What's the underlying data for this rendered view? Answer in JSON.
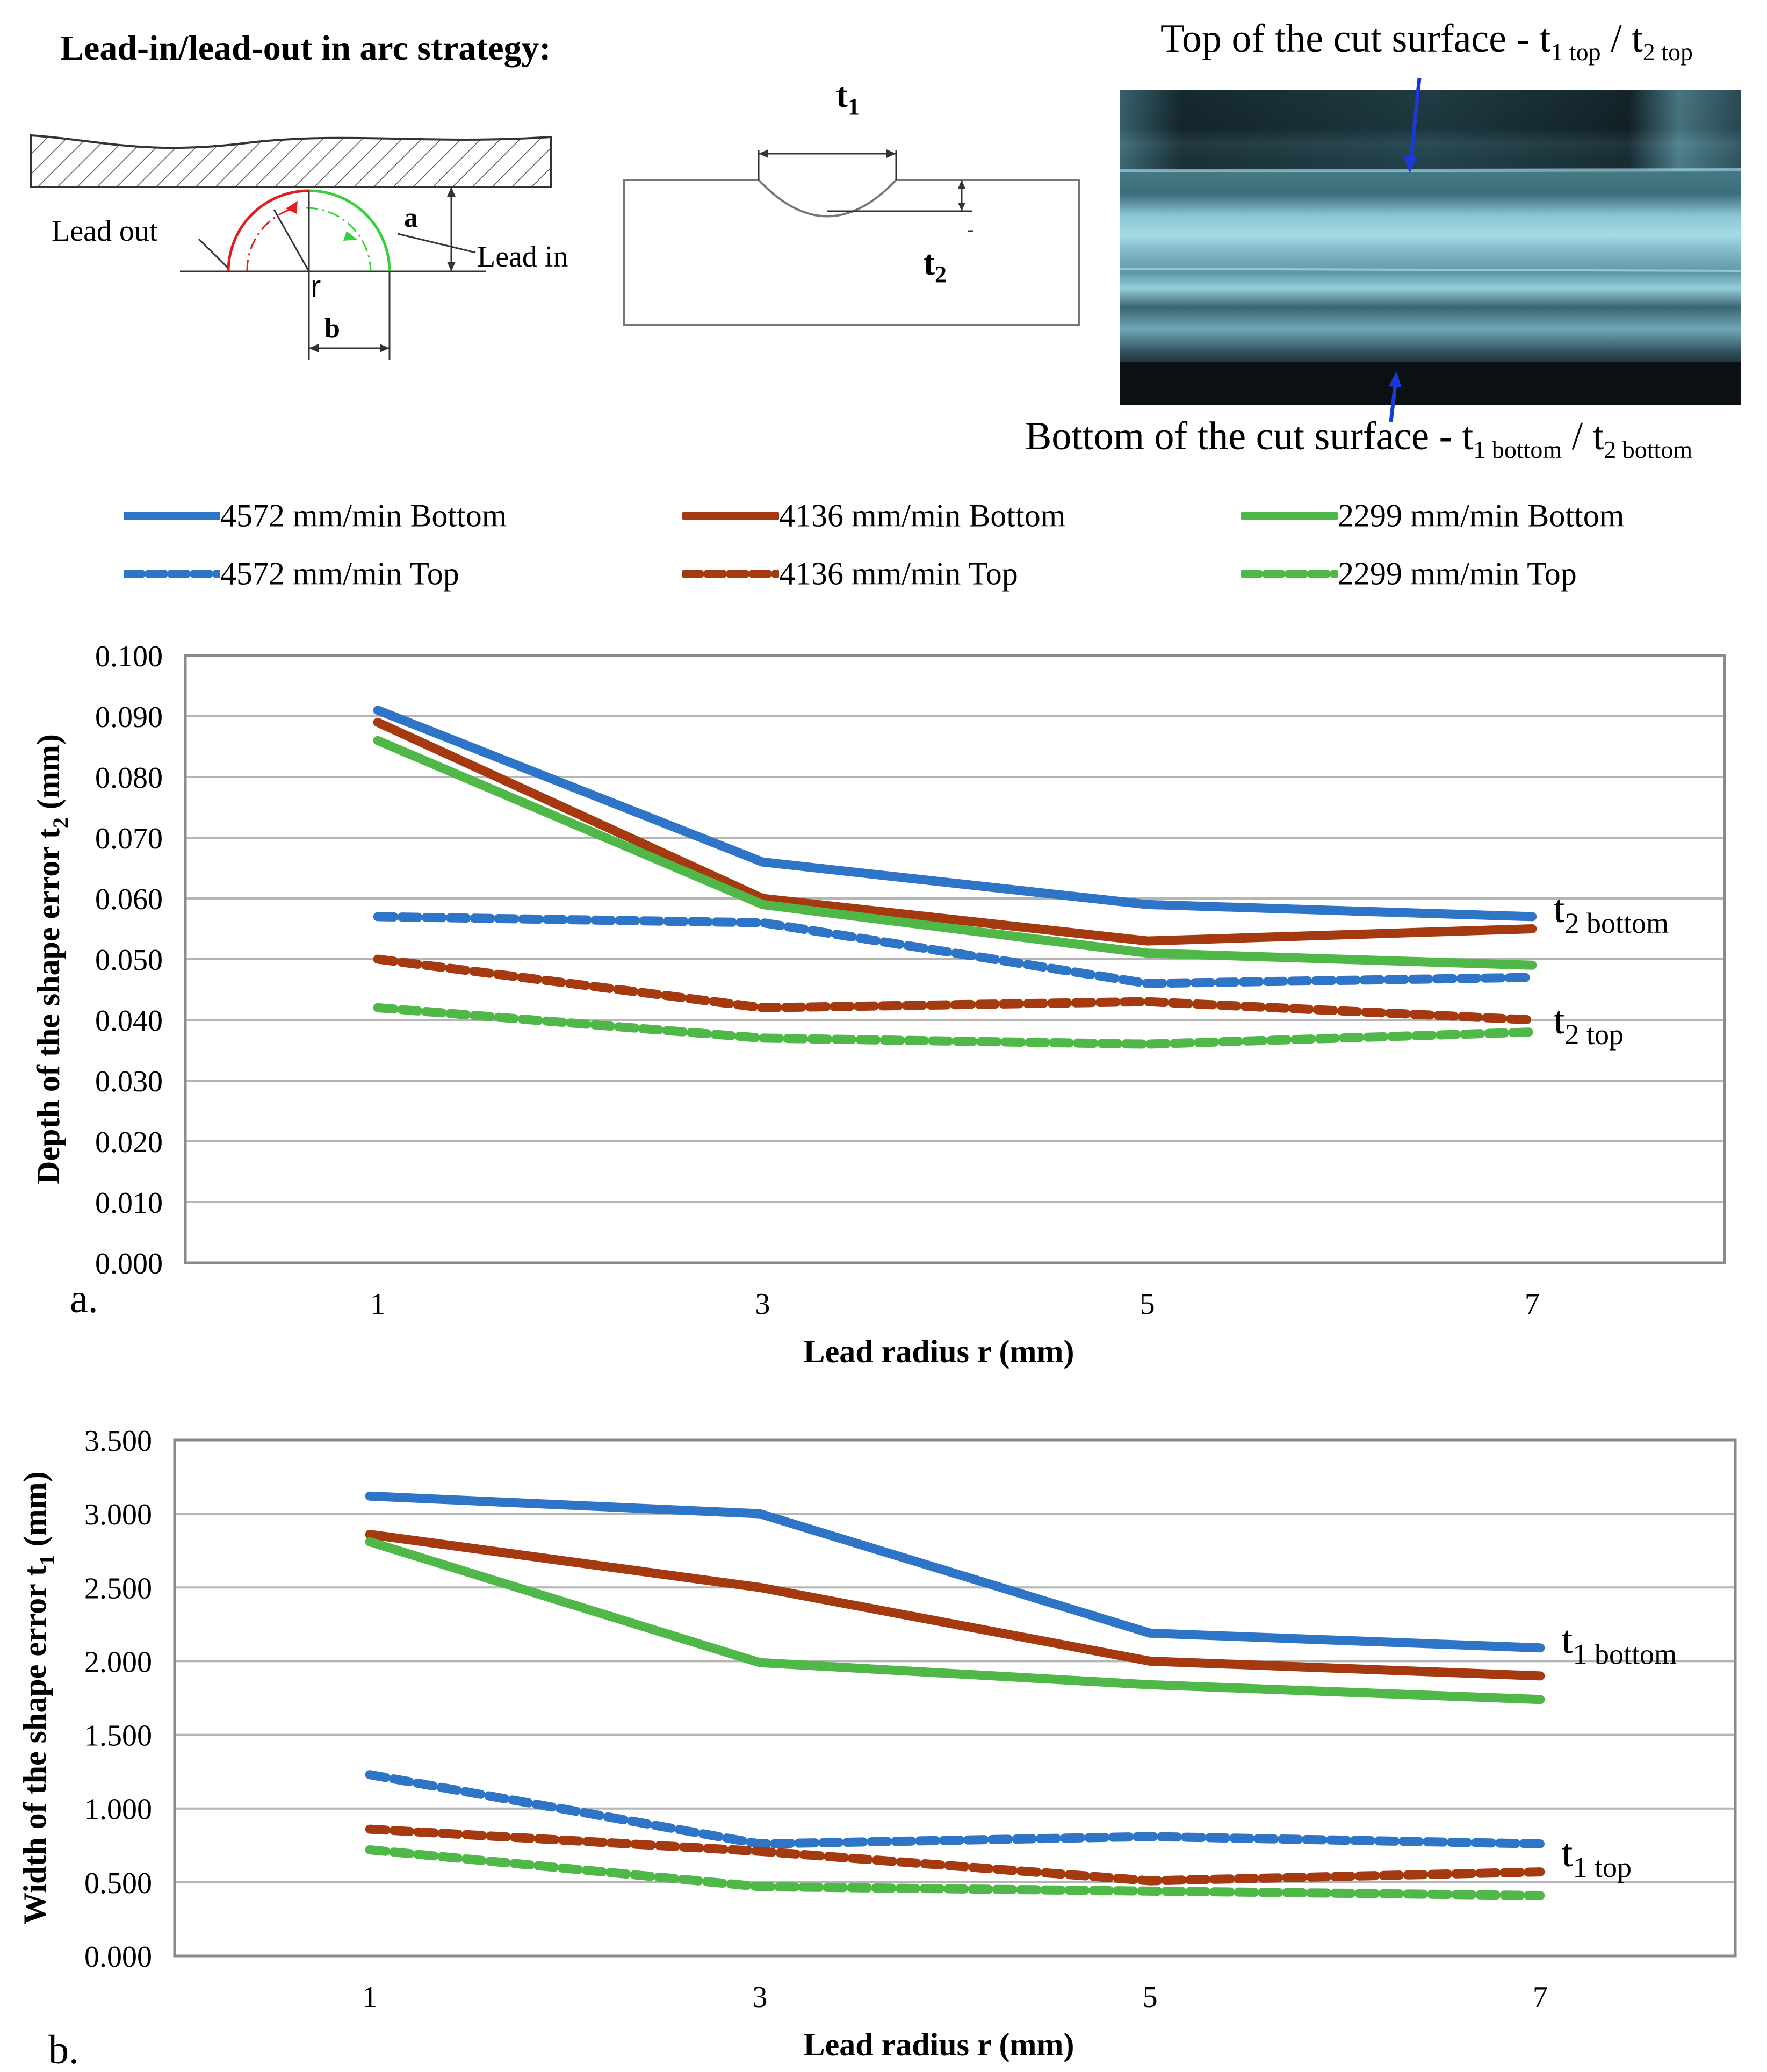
{
  "figure": {
    "strategy_title": "Lead-in/lead-out in  arc strategy:",
    "diagram1": {
      "lead_out": "Lead out",
      "lead_in": "Lead in",
      "a": "a",
      "b": "b",
      "r": "r"
    },
    "diagram2": {
      "t1": "t",
      "t1_sub": "1",
      "t2": "t",
      "t2_sub": "2"
    },
    "photo": {
      "top_text": "Top of the cut surface - t",
      "top_sub1": "1 top",
      "top_mid": " / t",
      "top_sub2": "2 top",
      "bottom_text": "Bottom of the cut surface - t",
      "bottom_sub1": "1 bottom",
      "bottom_mid": " / t",
      "bottom_sub2": "2 bottom"
    },
    "colors": {
      "blue": "#2E75C8",
      "brown": "#A5390F",
      "green": "#4FB848"
    }
  },
  "legend": [
    {
      "label": "4572 mm/min Bottom",
      "color": "#2E75C8",
      "dashed": false
    },
    {
      "label": "4136 mm/min Bottom",
      "color": "#A5390F",
      "dashed": false
    },
    {
      "label": "2299 mm/min Bottom",
      "color": "#4FB848",
      "dashed": false
    },
    {
      "label": "4572 mm/min Top",
      "color": "#2E75C8",
      "dashed": true
    },
    {
      "label": "4136 mm/min Top",
      "color": "#A5390F",
      "dashed": true
    },
    {
      "label": "2299 mm/min Top",
      "color": "#4FB848",
      "dashed": true
    }
  ],
  "chart_data": [
    {
      "type": "line",
      "panel": "a.",
      "x": [
        1,
        3,
        5,
        7
      ],
      "xlabel": "Lead radius  r (mm)",
      "ylabel": "Depth of the shape error t",
      "ylabel_sub": "2",
      "ylabel_unit": " (mm)",
      "ylim": [
        0,
        0.1
      ],
      "yticks": [
        "0.000",
        "0.010",
        "0.020",
        "0.030",
        "0.040",
        "0.050",
        "0.060",
        "0.070",
        "0.080",
        "0.090",
        "0.100"
      ],
      "grid": true,
      "annotations": [
        {
          "text": "t",
          "sub": "2 bottom",
          "x": 7,
          "y": 0.057
        },
        {
          "text": "t",
          "sub": "2 top",
          "x": 7,
          "y": 0.04
        }
      ],
      "series": [
        {
          "name": "4572 mm/min Bottom",
          "color": "#2E75C8",
          "dashed": false,
          "values": [
            0.091,
            0.066,
            0.059,
            0.057
          ]
        },
        {
          "name": "4136 mm/min Bottom",
          "color": "#A5390F",
          "dashed": false,
          "values": [
            0.089,
            0.06,
            0.053,
            0.055
          ]
        },
        {
          "name": "2299 mm/min Bottom",
          "color": "#4FB848",
          "dashed": false,
          "values": [
            0.086,
            0.059,
            0.051,
            0.049
          ]
        },
        {
          "name": "4572 mm/min Top",
          "color": "#2E75C8",
          "dashed": true,
          "values": [
            0.057,
            0.056,
            0.046,
            0.047
          ]
        },
        {
          "name": "4136 mm/min Top",
          "color": "#A5390F",
          "dashed": true,
          "values": [
            0.05,
            0.042,
            0.043,
            0.04
          ]
        },
        {
          "name": "2299 mm/min Top",
          "color": "#4FB848",
          "dashed": true,
          "values": [
            0.042,
            0.037,
            0.036,
            0.038
          ]
        }
      ]
    },
    {
      "type": "line",
      "panel": "b.",
      "x": [
        1,
        3,
        5,
        7
      ],
      "xlabel": "Lead radius r (mm)",
      "ylabel": "Width of the shape error t",
      "ylabel_sub": "1",
      "ylabel_unit": " (mm)",
      "ylim": [
        0,
        3.5
      ],
      "yticks": [
        "0.000",
        "0.500",
        "1.000",
        "1.500",
        "2.000",
        "2.500",
        "3.000",
        "3.500"
      ],
      "grid": true,
      "annotations": [
        {
          "text": "t",
          "sub": "1 bottom",
          "x": 7,
          "y": 2.09
        },
        {
          "text": "t",
          "sub": "1 top",
          "x": 7,
          "y": 0.7
        }
      ],
      "series": [
        {
          "name": "4572 mm/min Bottom",
          "color": "#2E75C8",
          "dashed": false,
          "values": [
            3.12,
            3.0,
            2.19,
            2.09
          ]
        },
        {
          "name": "4136 mm/min Bottom",
          "color": "#A5390F",
          "dashed": false,
          "values": [
            2.86,
            2.5,
            2.0,
            1.9
          ]
        },
        {
          "name": "2299 mm/min Bottom",
          "color": "#4FB848",
          "dashed": false,
          "values": [
            2.81,
            1.99,
            1.84,
            1.74
          ]
        },
        {
          "name": "4572 mm/min Top",
          "color": "#2E75C8",
          "dashed": true,
          "values": [
            1.23,
            0.76,
            0.81,
            0.76
          ]
        },
        {
          "name": "4136 mm/min Top",
          "color": "#A5390F",
          "dashed": true,
          "values": [
            0.86,
            0.71,
            0.51,
            0.57
          ]
        },
        {
          "name": "2299 mm/min Top",
          "color": "#4FB848",
          "dashed": true,
          "values": [
            0.72,
            0.47,
            0.44,
            0.41
          ]
        }
      ]
    }
  ]
}
